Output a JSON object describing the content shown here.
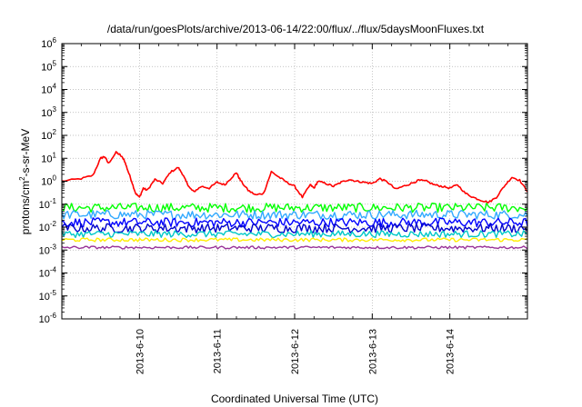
{
  "chart_data": {
    "type": "line",
    "title": "/data/run/goesPlots/archive/2013-06-14/22:00/flux/../flux/5daysMoonFluxes.txt",
    "xlabel": "Coordinated Universal Time (UTC)",
    "ylabel": {
      "prefix": "protons/cm",
      "sup": "2",
      "suffix": "-s-sr-MeV"
    },
    "yscale": "log",
    "ylim": [
      1e-06,
      1000000.0
    ],
    "xlim": [
      "2013-06-09 00:00",
      "2013-06-15 00:00"
    ],
    "grid": true,
    "legend": "none",
    "y_ticks": [
      {
        "base": "10",
        "exp": "-6"
      },
      {
        "base": "10",
        "exp": "-5"
      },
      {
        "base": "10",
        "exp": "-4"
      },
      {
        "base": "10",
        "exp": "-3"
      },
      {
        "base": "10",
        "exp": "-2"
      },
      {
        "base": "10",
        "exp": "-1"
      },
      {
        "base": "10",
        "exp": "0"
      },
      {
        "base": "10",
        "exp": "1"
      },
      {
        "base": "10",
        "exp": "2"
      },
      {
        "base": "10",
        "exp": "3"
      },
      {
        "base": "10",
        "exp": "4"
      },
      {
        "base": "10",
        "exp": "5"
      },
      {
        "base": "10",
        "exp": "6"
      }
    ],
    "x_ticks": [
      "2013-6-10",
      "2013-6-11",
      "2013-6-12",
      "2013-6-13",
      "2013-6-14"
    ],
    "series": [
      {
        "color": "#ff0000",
        "noise": 0.04,
        "x": [
          0,
          0.25,
          0.4,
          0.5,
          0.55,
          0.6,
          0.7,
          0.75,
          0.8,
          0.85,
          0.9,
          0.95,
          1.0,
          1.05,
          1.1,
          1.2,
          1.3,
          1.4,
          1.5,
          1.55,
          1.6,
          1.65,
          1.7,
          1.8,
          1.9,
          2.0,
          2.1,
          2.2,
          2.25,
          2.3,
          2.4,
          2.5,
          2.6,
          2.7,
          2.8,
          2.9,
          3.0,
          3.1,
          3.2,
          3.25,
          3.3,
          3.4,
          3.5,
          3.6,
          3.7,
          3.8,
          3.9,
          4.0,
          4.1,
          4.2,
          4.3,
          4.4,
          4.5,
          4.6,
          4.7,
          4.8,
          4.9,
          5.0,
          5.1,
          5.2,
          5.3,
          5.4,
          5.5,
          5.6,
          5.7,
          5.8,
          5.9,
          6.0
        ],
        "y": [
          1.0,
          1.3,
          1.8,
          10,
          12,
          6,
          18,
          14,
          9,
          3,
          1.0,
          0.3,
          0.2,
          0.5,
          0.4,
          1.2,
          0.8,
          2.5,
          4.0,
          2.2,
          1.0,
          0.5,
          0.35,
          0.6,
          0.5,
          0.9,
          0.7,
          1.6,
          2.4,
          1.1,
          0.4,
          0.25,
          0.3,
          2.6,
          1.5,
          0.9,
          0.6,
          0.2,
          0.7,
          0.5,
          1.0,
          0.8,
          0.6,
          0.9,
          1.2,
          1.0,
          0.9,
          0.8,
          1.3,
          0.9,
          0.45,
          0.6,
          0.8,
          1.1,
          1.0,
          0.7,
          0.6,
          0.5,
          0.7,
          0.3,
          0.2,
          0.15,
          0.12,
          0.2,
          0.6,
          1.5,
          1.1,
          0.35
        ]
      },
      {
        "color": "#00ff00",
        "x_start": 0,
        "x_end": 6,
        "points": 240,
        "base": 0.07,
        "noise": 0.2
      },
      {
        "color": "#33aaff",
        "x_start": 0,
        "x_end": 6,
        "points": 240,
        "base": 0.035,
        "noise": 0.2
      },
      {
        "color": "#0000ff",
        "x_start": 0,
        "x_end": 6,
        "points": 240,
        "base": 0.016,
        "noise": 0.2
      },
      {
        "color": "#0000cc",
        "x_start": 0,
        "x_end": 6,
        "points": 240,
        "base": 0.009,
        "noise": 0.2
      },
      {
        "color": "#00c8c8",
        "x_start": 0,
        "x_end": 6,
        "points": 240,
        "base": 0.005,
        "noise": 0.15
      },
      {
        "color": "#ffee00",
        "x_start": 0,
        "x_end": 6,
        "points": 240,
        "base": 0.0028,
        "noise": 0.08
      },
      {
        "color": "#993399",
        "x_start": 0,
        "x_end": 6,
        "points": 240,
        "base": 0.0013,
        "noise": 0.06
      }
    ]
  }
}
